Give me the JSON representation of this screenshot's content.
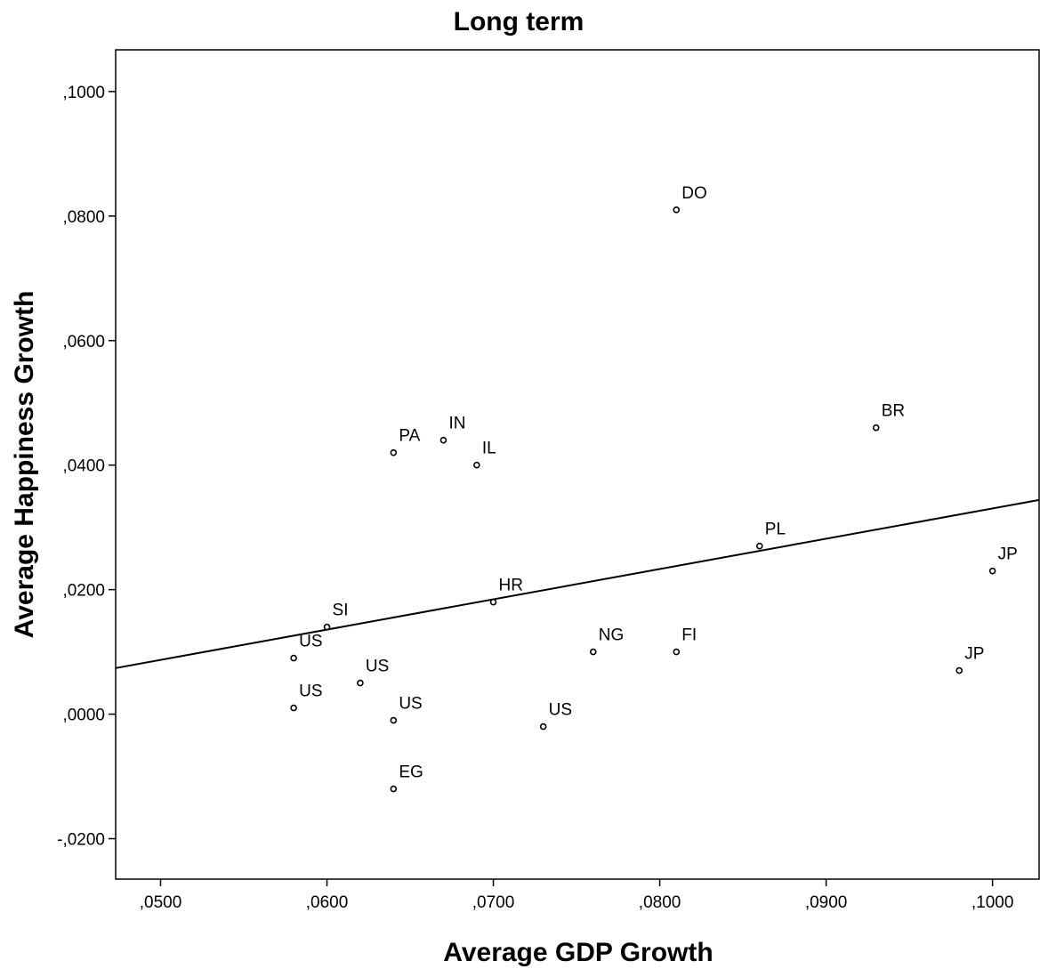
{
  "chart_data": {
    "type": "scatter",
    "title": "Long term",
    "xlabel": "Average GDP Growth",
    "ylabel": "Average Happiness Growth",
    "xlim": [
      0.0473,
      0.1028
    ],
    "ylim": [
      -0.0265,
      0.1067
    ],
    "x_ticks": [
      0.05,
      0.06,
      0.07,
      0.08,
      0.09,
      0.1
    ],
    "x_tick_labels": [
      ",0500",
      ",0600",
      ",0700",
      ",0800",
      ",0900",
      ",1000"
    ],
    "y_ticks": [
      -0.02,
      0.0,
      0.02,
      0.04,
      0.06,
      0.08,
      0.1
    ],
    "y_tick_labels": [
      "-,0200",
      ",0000",
      ",0200",
      ",0400",
      ",0600",
      ",0800",
      ",1000"
    ],
    "grid": false,
    "points": [
      {
        "label": "DO",
        "x": 0.081,
        "y": 0.081
      },
      {
        "label": "BR",
        "x": 0.093,
        "y": 0.046
      },
      {
        "label": "PA",
        "x": 0.064,
        "y": 0.042
      },
      {
        "label": "IN",
        "x": 0.067,
        "y": 0.044
      },
      {
        "label": "IL",
        "x": 0.069,
        "y": 0.04
      },
      {
        "label": "PL",
        "x": 0.086,
        "y": 0.027
      },
      {
        "label": "JP",
        "x": 0.1,
        "y": 0.023
      },
      {
        "label": "HR",
        "x": 0.07,
        "y": 0.018
      },
      {
        "label": "SI",
        "x": 0.06,
        "y": 0.014
      },
      {
        "label": "US",
        "x": 0.058,
        "y": 0.009
      },
      {
        "label": "NG",
        "x": 0.076,
        "y": 0.01
      },
      {
        "label": "FI",
        "x": 0.081,
        "y": 0.01
      },
      {
        "label": "JP",
        "x": 0.098,
        "y": 0.007
      },
      {
        "label": "US",
        "x": 0.062,
        "y": 0.005
      },
      {
        "label": "US",
        "x": 0.058,
        "y": 0.001
      },
      {
        "label": "US",
        "x": 0.064,
        "y": -0.001
      },
      {
        "label": "US",
        "x": 0.073,
        "y": -0.002
      },
      {
        "label": "EG",
        "x": 0.064,
        "y": -0.012
      }
    ],
    "fit_line": {
      "type": "linear",
      "start": {
        "x": 0.0473,
        "y": 0.0074
      },
      "end": {
        "x": 0.1028,
        "y": 0.0344
      }
    }
  }
}
